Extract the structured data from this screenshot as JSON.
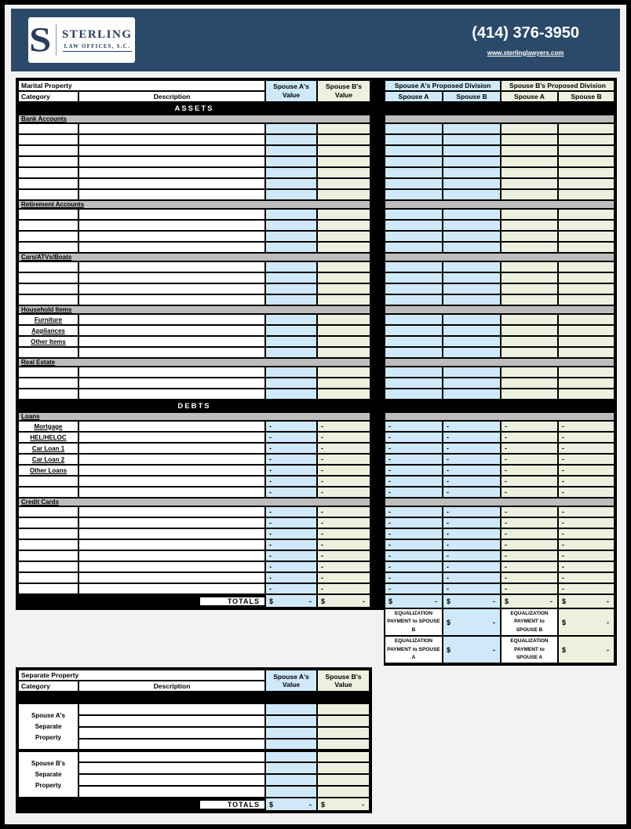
{
  "colors": {
    "banner_blue": "#2b4a6a",
    "spouse_a_cell_blue": "#cfe9f9",
    "spouse_b_cell_green": "#ebf1de",
    "section_band_gray": "#bdbdbd"
  },
  "banner": {
    "monogram": "S",
    "firm_name": "STERLING",
    "firm_subtitle": "LAW OFFICES, S.C.",
    "phone": "(414) 376-3950",
    "website": "www.sterlinglawyers.com"
  },
  "marital": {
    "title": "Marital Property",
    "columns": {
      "category": "Category",
      "description": "Description",
      "spouse_a_value": "Spouse A's Value",
      "spouse_b_value": "Spouse B's Value"
    },
    "divisions": {
      "a_title": "Spouse A's Proposed Division",
      "b_title": "Spouse B's Proposed Division",
      "sub_a": "Spouse A",
      "sub_b": "Spouse B"
    },
    "group_labels": {
      "assets": "ASSETS",
      "debts": "DEBTS"
    },
    "sections": [
      {
        "name": "Bank Accounts",
        "group": "assets",
        "type": "asset",
        "rows": [
          "",
          "",
          "",
          "",
          "",
          "",
          ""
        ]
      },
      {
        "name": "Retirement Accounts",
        "group": "assets",
        "type": "asset",
        "rows": [
          "",
          "",
          "",
          ""
        ]
      },
      {
        "name": "Cars/ATVs/Boats",
        "group": "assets",
        "type": "asset",
        "rows": [
          "",
          "",
          "",
          ""
        ]
      },
      {
        "name": "Household Items",
        "group": "assets",
        "type": "asset",
        "rows": [
          "Furniture",
          "Appliances",
          "Other Items",
          ""
        ]
      },
      {
        "name": "Real Estate",
        "group": "assets",
        "type": "asset",
        "rows": [
          "",
          "",
          ""
        ]
      },
      {
        "name": "Loans",
        "group": "debts",
        "type": "debt",
        "rows": [
          "Mortgage",
          "HEL/HELOC",
          "Car Loan 1",
          "Car Loan 2",
          "Other Loans",
          "",
          ""
        ]
      },
      {
        "name": "Credit Cards",
        "group": "debts",
        "type": "debt",
        "rows": [
          "",
          "",
          "",
          "",
          "",
          "",
          "",
          ""
        ]
      }
    ],
    "debt_placeholder": "-",
    "totals": {
      "label": "TOTALS",
      "currency": "$",
      "value": "-"
    }
  },
  "equalization": {
    "row_b": {
      "label": "EQUALIZATION PAYMENT to SPOUSE B",
      "currency": "$",
      "value": "-"
    },
    "row_a": {
      "label": "EQUALIZATION PAYMENT to SPOUSE A",
      "currency": "$",
      "value": "-"
    }
  },
  "separate": {
    "title": "Separate Property",
    "columns": {
      "category": "Category",
      "description": "Description",
      "spouse_a_value": "Spouse A's Value",
      "spouse_b_value": "Spouse B's Value"
    },
    "groups": [
      {
        "label": "Spouse A's Separate Property",
        "rows": 4
      },
      {
        "label": "Spouse B's Separate Property",
        "rows": 4
      }
    ],
    "totals": {
      "label": "TOTALS",
      "currency": "$",
      "value": "-"
    }
  }
}
